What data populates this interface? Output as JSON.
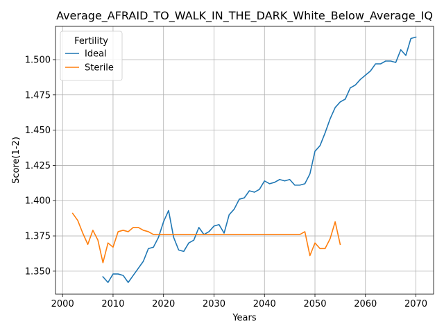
{
  "chart_data": {
    "type": "line",
    "title": "Average_AFRAID_TO_WALK_IN_THE_DARK_White_Below_Average_IQ",
    "xlabel": "Years",
    "ylabel": "Score(1-2)",
    "xlim": [
      1998.6,
      2073.5
    ],
    "ylim": [
      1.3337,
      1.5236
    ],
    "xticks": [
      2000,
      2010,
      2020,
      2030,
      2040,
      2050,
      2060,
      2070
    ],
    "yticks": [
      1.35,
      1.375,
      1.4,
      1.425,
      1.45,
      1.475,
      1.5
    ],
    "ytick_labels": [
      "1.350",
      "1.375",
      "1.400",
      "1.425",
      "1.450",
      "1.475",
      "1.500"
    ],
    "grid": true,
    "legend": {
      "title": "Fertility",
      "placement": "upper-left"
    },
    "series": [
      {
        "name": "Ideal",
        "color": "#1f77b4",
        "x": [
          2008,
          2009,
          2010,
          2011,
          2012,
          2013,
          2014,
          2015,
          2016,
          2017,
          2018,
          2019,
          2020,
          2021,
          2022,
          2023,
          2024,
          2025,
          2026,
          2027,
          2028,
          2029,
          2030,
          2031,
          2032,
          2033,
          2034,
          2035,
          2036,
          2037,
          2038,
          2039,
          2040,
          2041,
          2042,
          2043,
          2044,
          2045,
          2046,
          2047,
          2048,
          2049,
          2050,
          2051,
          2052,
          2053,
          2054,
          2055,
          2056,
          2057,
          2058,
          2059,
          2060,
          2061,
          2062,
          2063,
          2064,
          2065,
          2066,
          2067,
          2068,
          2069,
          2070
        ],
        "values": [
          1.346,
          1.342,
          1.348,
          1.348,
          1.347,
          1.342,
          1.347,
          1.352,
          1.357,
          1.366,
          1.367,
          1.374,
          1.385,
          1.393,
          1.374,
          1.365,
          1.364,
          1.37,
          1.372,
          1.381,
          1.376,
          1.378,
          1.382,
          1.383,
          1.377,
          1.39,
          1.394,
          1.401,
          1.402,
          1.407,
          1.406,
          1.408,
          1.414,
          1.412,
          1.413,
          1.415,
          1.414,
          1.415,
          1.411,
          1.411,
          1.412,
          1.419,
          1.435,
          1.439,
          1.448,
          1.458,
          1.466,
          1.47,
          1.472,
          1.48,
          1.482,
          1.486,
          1.489,
          1.492,
          1.497,
          1.497,
          1.499,
          1.499,
          1.498,
          1.507,
          1.503,
          1.515,
          1.516
        ]
      },
      {
        "name": "Sterile",
        "color": "#ff7f0e",
        "x": [
          2002,
          2003,
          2004,
          2005,
          2006,
          2007,
          2008,
          2009,
          2010,
          2011,
          2012,
          2013,
          2014,
          2015,
          2016,
          2017,
          2018,
          2019,
          2020,
          2021,
          2022,
          2023,
          2024,
          2025,
          2026,
          2027,
          2028,
          2029,
          2030,
          2031,
          2032,
          2033,
          2034,
          2035,
          2036,
          2037,
          2038,
          2039,
          2040,
          2041,
          2042,
          2043,
          2044,
          2045,
          2046,
          2047,
          2048,
          2049,
          2050,
          2051,
          2052,
          2053,
          2054,
          2055
        ],
        "values": [
          1.391,
          1.386,
          1.377,
          1.369,
          1.379,
          1.372,
          1.356,
          1.37,
          1.367,
          1.378,
          1.379,
          1.378,
          1.381,
          1.381,
          1.379,
          1.378,
          1.376,
          1.376,
          1.376,
          1.376,
          1.376,
          1.376,
          1.376,
          1.376,
          1.376,
          1.376,
          1.376,
          1.376,
          1.376,
          1.376,
          1.376,
          1.376,
          1.376,
          1.376,
          1.376,
          1.376,
          1.376,
          1.376,
          1.376,
          1.376,
          1.376,
          1.376,
          1.376,
          1.376,
          1.376,
          1.376,
          1.378,
          1.361,
          1.37,
          1.366,
          1.366,
          1.373,
          1.385,
          1.369
        ]
      }
    ]
  }
}
